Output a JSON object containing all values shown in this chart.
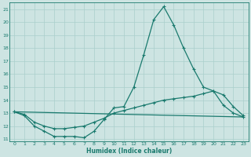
{
  "xlabel": "Humidex (Indice chaleur)",
  "background_color": "#cde4e2",
  "line_color": "#1a7a6e",
  "grid_color": "#aacfcc",
  "xlim": [
    -0.5,
    23.5
  ],
  "ylim": [
    10.8,
    21.5
  ],
  "yticks": [
    11,
    12,
    13,
    14,
    15,
    16,
    17,
    18,
    19,
    20,
    21
  ],
  "xticks": [
    0,
    1,
    2,
    3,
    4,
    5,
    6,
    7,
    8,
    9,
    10,
    11,
    12,
    13,
    14,
    15,
    16,
    17,
    18,
    19,
    20,
    21,
    22,
    23
  ],
  "series_main": {
    "x": [
      0,
      1,
      2,
      3,
      4,
      5,
      6,
      7,
      8,
      9,
      10,
      11,
      12,
      13,
      14,
      15,
      16,
      17,
      18,
      19,
      20,
      21,
      22,
      23
    ],
    "y": [
      13.1,
      12.8,
      12.0,
      11.6,
      11.2,
      11.2,
      11.2,
      11.1,
      11.6,
      12.5,
      13.4,
      13.5,
      15.0,
      17.5,
      20.2,
      21.2,
      19.8,
      18.0,
      16.4,
      15.0,
      14.7,
      13.6,
      13.0,
      12.7
    ]
  },
  "series_avg": {
    "x": [
      0,
      1,
      2,
      3,
      4,
      5,
      6,
      7,
      8,
      9,
      10,
      11,
      12,
      13,
      14,
      15,
      16,
      17,
      18,
      19,
      20,
      21,
      22,
      23
    ],
    "y": [
      13.1,
      12.9,
      12.3,
      12.0,
      11.8,
      11.8,
      11.9,
      12.0,
      12.3,
      12.6,
      13.0,
      13.2,
      13.4,
      13.6,
      13.8,
      14.0,
      14.1,
      14.2,
      14.3,
      14.5,
      14.7,
      14.4,
      13.5,
      12.8
    ]
  },
  "series_flat": {
    "x": [
      0,
      23
    ],
    "y": [
      13.1,
      12.7
    ]
  }
}
